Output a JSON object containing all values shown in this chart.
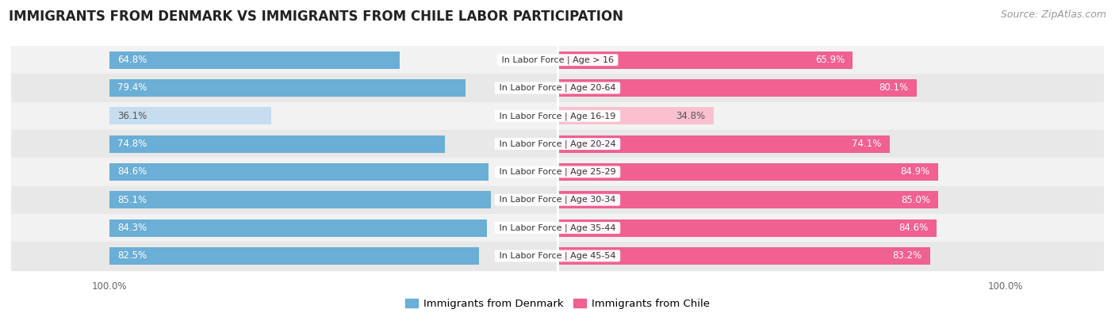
{
  "title": "IMMIGRANTS FROM DENMARK VS IMMIGRANTS FROM CHILE LABOR PARTICIPATION",
  "source": "Source: ZipAtlas.com",
  "categories": [
    "In Labor Force | Age > 16",
    "In Labor Force | Age 20-64",
    "In Labor Force | Age 16-19",
    "In Labor Force | Age 20-24",
    "In Labor Force | Age 25-29",
    "In Labor Force | Age 30-34",
    "In Labor Force | Age 35-44",
    "In Labor Force | Age 45-54"
  ],
  "denmark_values": [
    64.8,
    79.4,
    36.1,
    74.8,
    84.6,
    85.1,
    84.3,
    82.5
  ],
  "chile_values": [
    65.9,
    80.1,
    34.8,
    74.1,
    84.9,
    85.0,
    84.6,
    83.2
  ],
  "denmark_color": "#6BAED6",
  "chile_color": "#F06090",
  "denmark_color_light": "#C6DCEF",
  "chile_color_light": "#F9C0D0",
  "row_bg_even": "#F2F2F2",
  "row_bg_odd": "#E8E8E8",
  "label_white": "#FFFFFF",
  "label_dark": "#555555",
  "title_fontsize": 12,
  "source_fontsize": 9,
  "legend_fontsize": 9.5,
  "bar_label_fontsize": 8.5,
  "category_fontsize": 8,
  "legend_labels": [
    "Immigrants from Denmark",
    "Immigrants from Chile"
  ],
  "threshold_light": 50.0,
  "max_val": 100.0
}
